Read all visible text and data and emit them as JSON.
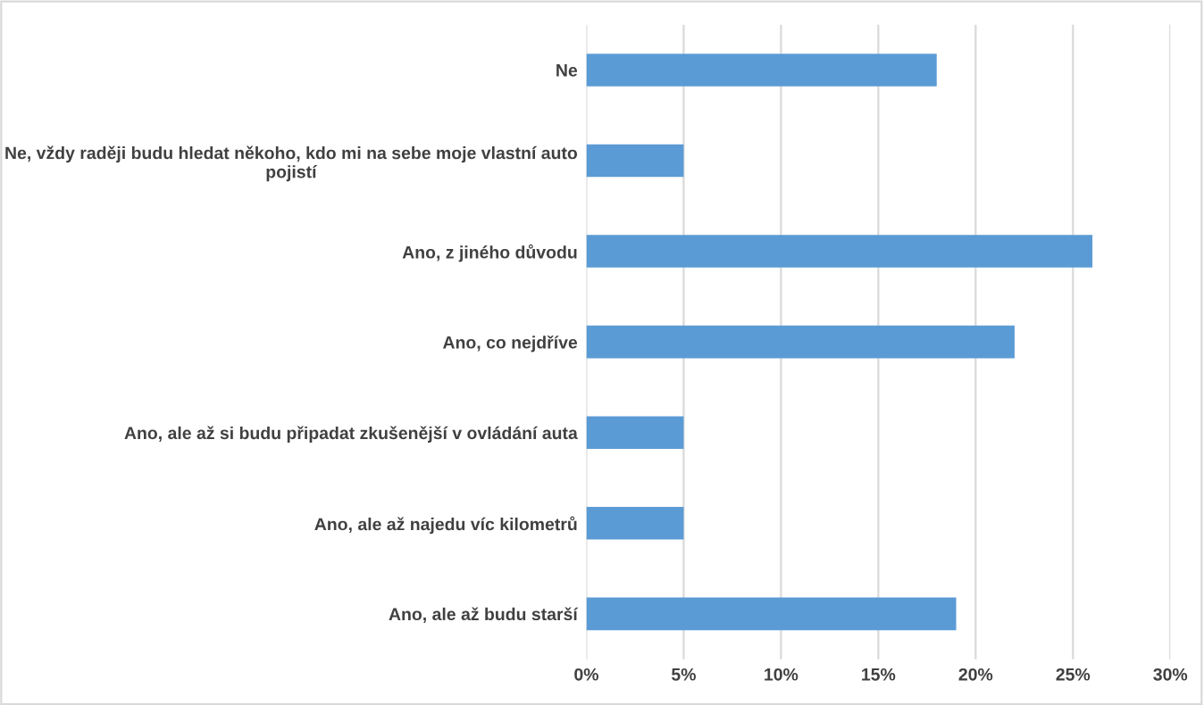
{
  "chart_data": {
    "type": "bar",
    "orientation": "horizontal",
    "categories": [
      "Ne",
      "Ne, vždy raději budu hledat někoho, kdo mi na sebe moje vlastní auto\npojistí",
      "Ano, z jiného důvodu",
      "Ano, co nejdříve",
      "Ano, ale až si budu připadat zkušenější v ovládání auta",
      "Ano, ale až najedu víc kilometrů",
      "Ano, ale až budu starší"
    ],
    "values": [
      18,
      5,
      26,
      22,
      5,
      5,
      19
    ],
    "color": "#5b9bd5",
    "xlim": [
      0,
      30
    ],
    "xticks": [
      {
        "value": 0,
        "label": "0%"
      },
      {
        "value": 5,
        "label": "5%"
      },
      {
        "value": 10,
        "label": "10%"
      },
      {
        "value": 15,
        "label": "15%"
      },
      {
        "value": 20,
        "label": "20%"
      },
      {
        "value": 25,
        "label": "25%"
      },
      {
        "value": 30,
        "label": "30%"
      }
    ],
    "grid": "x",
    "legend": false
  }
}
